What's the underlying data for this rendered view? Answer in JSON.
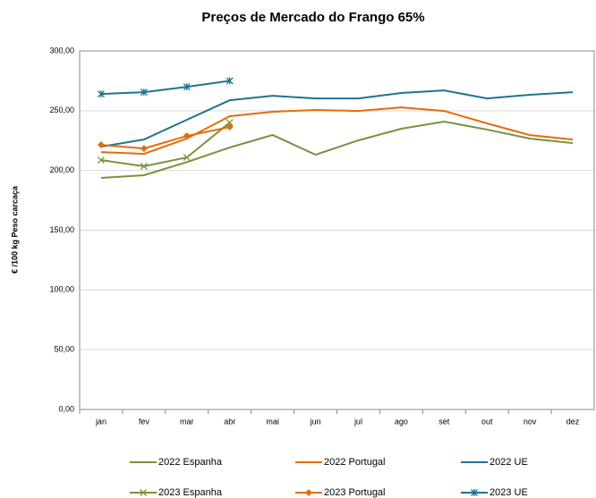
{
  "chart_data": {
    "type": "line",
    "title": "Preços de Mercado do Frango 65%",
    "y_label": "€ /100 kg Peso carcaça",
    "categories": [
      "jan",
      "fev",
      "mar",
      "abr",
      "mai",
      "jun",
      "jul",
      "ago",
      "set",
      "out",
      "nov",
      "dez"
    ],
    "ylim": [
      0,
      300
    ],
    "yticks": [
      {
        "value": 0,
        "label": "0,00"
      },
      {
        "value": 50,
        "label": "50,00"
      },
      {
        "value": 100,
        "label": "100,00"
      },
      {
        "value": 150,
        "label": "150,00"
      },
      {
        "value": 200,
        "label": "200,00"
      },
      {
        "value": 250,
        "label": "250,00"
      },
      {
        "value": 300,
        "label": "300,00"
      }
    ],
    "grid": true,
    "legend": "bottom",
    "series": [
      {
        "name": "2022 Espanha",
        "color": "#77933c",
        "marker": "none",
        "values": [
          193.8,
          196.0,
          207.0,
          219.2,
          229.7,
          213.2,
          225.2,
          234.9,
          240.9,
          234.2,
          226.7,
          222.9
        ]
      },
      {
        "name": "2022 Portugal",
        "color": "#e46c0a",
        "marker": "none",
        "values": [
          215.4,
          213.9,
          226.7,
          245.4,
          249.1,
          250.6,
          249.8,
          252.8,
          249.8,
          239.4,
          229.6,
          225.9
        ]
      },
      {
        "name": "2022 UE",
        "color": "#1f7391",
        "marker": "none",
        "values": [
          219.9,
          225.9,
          242.4,
          258.8,
          262.5,
          260.3,
          260.3,
          264.8,
          267.0,
          260.3,
          263.3,
          265.5
        ]
      },
      {
        "name": "2023 Espanha",
        "color": "#77933c",
        "marker": "x",
        "values": [
          208.7,
          203.5,
          210.9,
          240.1,
          null,
          null,
          null,
          null,
          null,
          null,
          null,
          null
        ]
      },
      {
        "name": "2023 Portugal",
        "color": "#e46c0a",
        "marker": "diamond",
        "values": [
          221.4,
          218.4,
          228.9,
          236.4,
          null,
          null,
          null,
          null,
          null,
          null,
          null,
          null
        ]
      },
      {
        "name": "2023 UE",
        "color": "#1f7391",
        "marker": "star",
        "values": [
          264.0,
          265.5,
          270.0,
          275.0,
          null,
          null,
          null,
          null,
          null,
          null,
          null,
          null
        ]
      }
    ]
  }
}
